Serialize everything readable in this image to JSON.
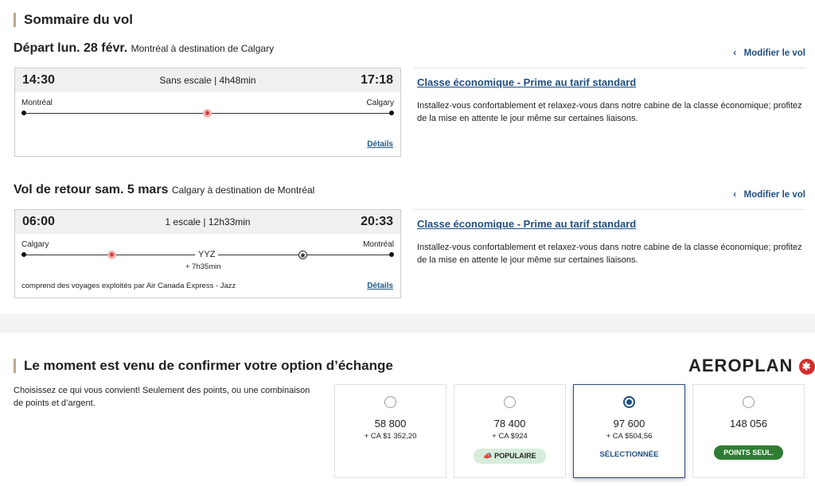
{
  "summary": {
    "title": "Sommaire du vol",
    "outbound": {
      "heading": "Départ lun. 28 févr.",
      "route": "Montréal à destination de Calgary",
      "depart": "14:30",
      "arrive": "17:18",
      "info": "Sans escale | 4h48min",
      "from": "Montréal",
      "to": "Calgary",
      "details": "Détails",
      "modify": "Modifier le vol",
      "fare": "Classe économique - Prime au tarif standard",
      "desc": "Installez-vous confortablement et relaxez-vous dans notre cabine de la classe économique; profitez de la mise en attente le jour même sur certaines liaisons."
    },
    "return": {
      "heading": "Vol de retour sam. 5 mars",
      "route": "Calgary à destination de Montréal",
      "depart": "06:00",
      "arrive": "20:33",
      "info": "1 escale | 12h33min",
      "from": "Calgary",
      "to": "Montréal",
      "stop": "YYZ",
      "layover": "+ 7h35min",
      "operated": "comprend des voyages exploités par Air Canada Express - Jazz",
      "details": "Détails",
      "modify": "Modifier le vol",
      "fare": "Classe économique - Prime au tarif standard",
      "desc": "Installez-vous confortablement et relaxez-vous dans notre cabine de la classe économique; profitez de la mise en attente le jour même sur certaines liaisons."
    }
  },
  "exchange": {
    "title": "Le moment est venu de confirmer votre option d’échange",
    "logo": "AEROPLAN",
    "intro": "Choisissez ce qui vous convient! Seulement des points, ou une combinaison de points et d’argent.",
    "options": [
      {
        "points": "58 800",
        "cash": "+ CA $1 352,20",
        "badge": "",
        "selected": false
      },
      {
        "points": "78 400",
        "cash": "+ CA $924",
        "badge": "POPULAIRE",
        "selected": false
      },
      {
        "points": "97 600",
        "cash": "+ CA $504,56",
        "badge": "SÉLECTIONNÉE",
        "selected": true
      },
      {
        "points": "148 056",
        "cash": "",
        "badge": "POINTS SEUL.",
        "selected": false
      }
    ]
  },
  "colors": {
    "accent": "#1f4f82",
    "brand_red": "#d22e2e",
    "popular_bg": "#d5edd9",
    "points_only_bg": "#2e7d32"
  }
}
